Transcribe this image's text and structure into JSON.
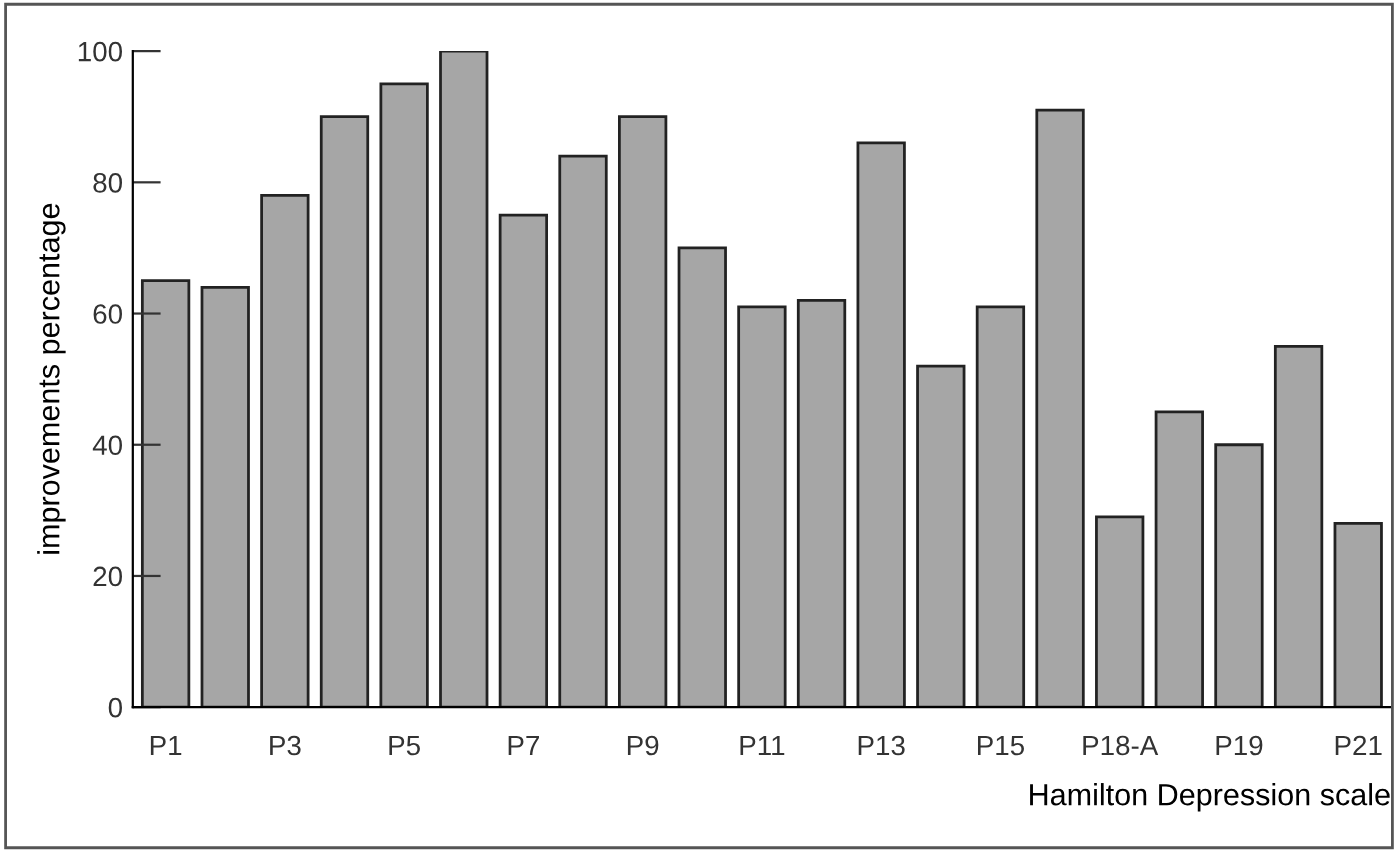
{
  "chart_data": {
    "type": "bar",
    "xlabel": "Hamilton Depression scale",
    "ylabel": "improvements percentage",
    "categories": [
      "P1",
      null,
      "P3",
      null,
      "P5",
      null,
      "P7",
      null,
      "P9",
      null,
      "P11",
      null,
      "P13",
      null,
      "P15",
      null,
      "P18-A",
      null,
      "P19",
      null,
      "P21"
    ],
    "values": [
      65,
      64,
      78,
      90,
      95,
      100,
      75,
      84,
      90,
      70,
      61,
      62,
      86,
      52,
      61,
      91,
      29,
      45,
      40,
      55,
      28
    ],
    "color": "#a6a6a6",
    "ylim": [
      0,
      100
    ],
    "yticks": [
      0,
      20,
      40,
      60,
      80,
      100
    ],
    "grid": false
  }
}
